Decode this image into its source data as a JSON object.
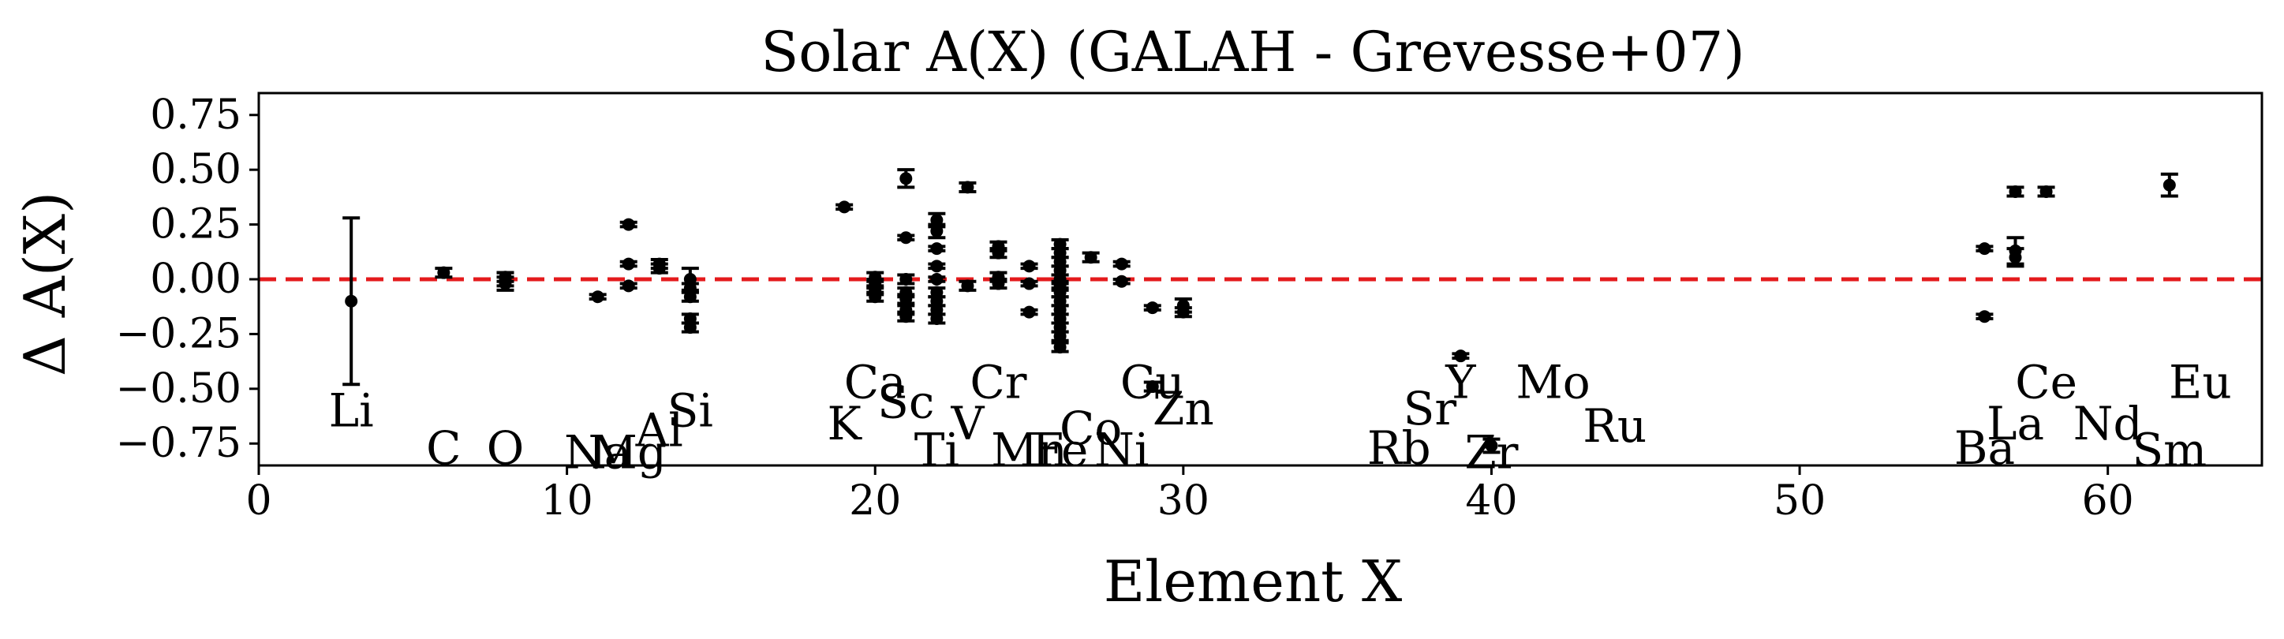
{
  "chart_data": {
    "type": "scatter",
    "title": "Solar A(X) (GALAH - Grevesse+07)",
    "xlabel": "Element X",
    "ylabel": "Δ A(X)",
    "xlim": [
      0,
      65
    ],
    "ylim": [
      -0.85,
      0.85
    ],
    "xticks": [
      0,
      10,
      20,
      30,
      40,
      50,
      60
    ],
    "yticks": [
      -0.75,
      -0.5,
      -0.25,
      0.0,
      0.25,
      0.5,
      0.75
    ],
    "ytick_labels": [
      "−0.75",
      "−0.50",
      "−0.25",
      "0.00",
      "0.25",
      "0.50",
      "0.75"
    ],
    "reference_line": {
      "y": 0,
      "color": "#e41a1c",
      "style": "dashed"
    },
    "point_color": "#000000",
    "points": [
      {
        "x": 3,
        "y": -0.1,
        "err": 0.38
      },
      {
        "x": 6,
        "y": 0.03,
        "err": 0.02
      },
      {
        "x": 8,
        "y": 0.0,
        "err": 0.03
      },
      {
        "x": 8,
        "y": -0.02,
        "err": 0.03
      },
      {
        "x": 8,
        "y": 0.01,
        "err": 0.02
      },
      {
        "x": 11,
        "y": -0.08,
        "err": 0.01
      },
      {
        "x": 12,
        "y": 0.25,
        "err": 0.01
      },
      {
        "x": 12,
        "y": 0.07,
        "err": 0.01
      },
      {
        "x": 12,
        "y": -0.03,
        "err": 0.01
      },
      {
        "x": 13,
        "y": 0.07,
        "err": 0.02
      },
      {
        "x": 13,
        "y": 0.05,
        "err": 0.02
      },
      {
        "x": 14,
        "y": 0.0,
        "err": 0.05
      },
      {
        "x": 14,
        "y": -0.04,
        "err": 0.02
      },
      {
        "x": 14,
        "y": -0.08,
        "err": 0.02
      },
      {
        "x": 14,
        "y": -0.18,
        "err": 0.02
      },
      {
        "x": 14,
        "y": -0.22,
        "err": 0.02
      },
      {
        "x": 19,
        "y": 0.33,
        "err": 0.01
      },
      {
        "x": 20,
        "y": 0.01,
        "err": 0.02
      },
      {
        "x": 20,
        "y": -0.02,
        "err": 0.02
      },
      {
        "x": 20,
        "y": -0.05,
        "err": 0.02
      },
      {
        "x": 20,
        "y": -0.08,
        "err": 0.02
      },
      {
        "x": 21,
        "y": 0.46,
        "err": 0.04
      },
      {
        "x": 21,
        "y": 0.19,
        "err": 0.01
      },
      {
        "x": 21,
        "y": 0.0,
        "err": 0.02
      },
      {
        "x": 21,
        "y": -0.06,
        "err": 0.02
      },
      {
        "x": 21,
        "y": -0.09,
        "err": 0.02
      },
      {
        "x": 21,
        "y": -0.14,
        "err": 0.02
      },
      {
        "x": 21,
        "y": -0.17,
        "err": 0.02
      },
      {
        "x": 22,
        "y": 0.27,
        "err": 0.03
      },
      {
        "x": 22,
        "y": 0.22,
        "err": 0.03
      },
      {
        "x": 22,
        "y": 0.14,
        "err": 0.01
      },
      {
        "x": 22,
        "y": 0.06,
        "err": 0.01
      },
      {
        "x": 22,
        "y": 0.0,
        "err": 0.01
      },
      {
        "x": 22,
        "y": -0.06,
        "err": 0.02
      },
      {
        "x": 22,
        "y": -0.1,
        "err": 0.02
      },
      {
        "x": 22,
        "y": -0.14,
        "err": 0.02
      },
      {
        "x": 22,
        "y": -0.18,
        "err": 0.02
      },
      {
        "x": 23,
        "y": 0.42,
        "err": 0.02
      },
      {
        "x": 23,
        "y": -0.03,
        "err": 0.02
      },
      {
        "x": 24,
        "y": 0.15,
        "err": 0.02
      },
      {
        "x": 24,
        "y": 0.12,
        "err": 0.02
      },
      {
        "x": 24,
        "y": 0.01,
        "err": 0.02
      },
      {
        "x": 24,
        "y": -0.02,
        "err": 0.02
      },
      {
        "x": 25,
        "y": 0.06,
        "err": 0.01
      },
      {
        "x": 25,
        "y": -0.02,
        "err": 0.01
      },
      {
        "x": 25,
        "y": -0.15,
        "err": 0.01
      },
      {
        "x": 26,
        "y": 0.16,
        "err": 0.02
      },
      {
        "x": 26,
        "y": 0.12,
        "err": 0.02
      },
      {
        "x": 26,
        "y": 0.08,
        "err": 0.02
      },
      {
        "x": 26,
        "y": 0.04,
        "err": 0.02
      },
      {
        "x": 26,
        "y": 0.0,
        "err": 0.02
      },
      {
        "x": 26,
        "y": -0.03,
        "err": 0.02
      },
      {
        "x": 26,
        "y": -0.06,
        "err": 0.02
      },
      {
        "x": 26,
        "y": -0.1,
        "err": 0.02
      },
      {
        "x": 26,
        "y": -0.14,
        "err": 0.02
      },
      {
        "x": 26,
        "y": -0.18,
        "err": 0.02
      },
      {
        "x": 26,
        "y": -0.22,
        "err": 0.02
      },
      {
        "x": 26,
        "y": -0.26,
        "err": 0.02
      },
      {
        "x": 26,
        "y": -0.31,
        "err": 0.02
      },
      {
        "x": 27,
        "y": 0.1,
        "err": 0.02
      },
      {
        "x": 28,
        "y": 0.07,
        "err": 0.01
      },
      {
        "x": 28,
        "y": -0.01,
        "err": 0.01
      },
      {
        "x": 29,
        "y": -0.13,
        "err": 0.01
      },
      {
        "x": 29,
        "y": -0.49,
        "err": 0.02
      },
      {
        "x": 30,
        "y": -0.12,
        "err": 0.03
      },
      {
        "x": 30,
        "y": -0.15,
        "err": 0.02
      },
      {
        "x": 39,
        "y": -0.35,
        "err": 0.01
      },
      {
        "x": 40,
        "y": -0.76,
        "err": 0.03
      },
      {
        "x": 56,
        "y": 0.14,
        "err": 0.01
      },
      {
        "x": 56,
        "y": -0.17,
        "err": 0.01
      },
      {
        "x": 57,
        "y": 0.4,
        "err": 0.02
      },
      {
        "x": 57,
        "y": 0.13,
        "err": 0.06
      },
      {
        "x": 57,
        "y": 0.1,
        "err": 0.04
      },
      {
        "x": 58,
        "y": 0.4,
        "err": 0.02
      },
      {
        "x": 62,
        "y": 0.43,
        "err": 0.05
      }
    ],
    "annotations": [
      {
        "text": "Li",
        "x": 3,
        "y": -0.6
      },
      {
        "text": "C",
        "x": 6,
        "y": -0.77
      },
      {
        "text": "O",
        "x": 8,
        "y": -0.77
      },
      {
        "text": "Na",
        "x": 11,
        "y": -0.79
      },
      {
        "text": "Mg",
        "x": 12,
        "y": -0.79
      },
      {
        "text": "Al",
        "x": 13,
        "y": -0.69
      },
      {
        "text": "Si",
        "x": 14,
        "y": -0.6
      },
      {
        "text": "K",
        "x": 19,
        "y": -0.66
      },
      {
        "text": "Ca",
        "x": 20,
        "y": -0.47
      },
      {
        "text": "Sc",
        "x": 21,
        "y": -0.56
      },
      {
        "text": "Ti",
        "x": 22,
        "y": -0.78
      },
      {
        "text": "V",
        "x": 23,
        "y": -0.66
      },
      {
        "text": "Cr",
        "x": 24,
        "y": -0.47
      },
      {
        "text": "Mn",
        "x": 25,
        "y": -0.78
      },
      {
        "text": "Fe",
        "x": 26,
        "y": -0.78
      },
      {
        "text": "Co",
        "x": 27,
        "y": -0.68
      },
      {
        "text": "Ni",
        "x": 28,
        "y": -0.78
      },
      {
        "text": "Cu",
        "x": 29,
        "y": -0.47
      },
      {
        "text": "Zn",
        "x": 30,
        "y": -0.59
      },
      {
        "text": "Rb",
        "x": 37,
        "y": -0.77
      },
      {
        "text": "Sr",
        "x": 38,
        "y": -0.59
      },
      {
        "text": "Y",
        "x": 39,
        "y": -0.47
      },
      {
        "text": "Zr",
        "x": 40,
        "y": -0.79
      },
      {
        "text": "Mo",
        "x": 42,
        "y": -0.47
      },
      {
        "text": "Ru",
        "x": 44,
        "y": -0.67
      },
      {
        "text": "Ba",
        "x": 56,
        "y": -0.77
      },
      {
        "text": "La",
        "x": 57,
        "y": -0.66
      },
      {
        "text": "Ce",
        "x": 58,
        "y": -0.47
      },
      {
        "text": "Nd",
        "x": 60,
        "y": -0.66
      },
      {
        "text": "Sm",
        "x": 62,
        "y": -0.78
      },
      {
        "text": "Eu",
        "x": 63,
        "y": -0.47
      }
    ]
  }
}
